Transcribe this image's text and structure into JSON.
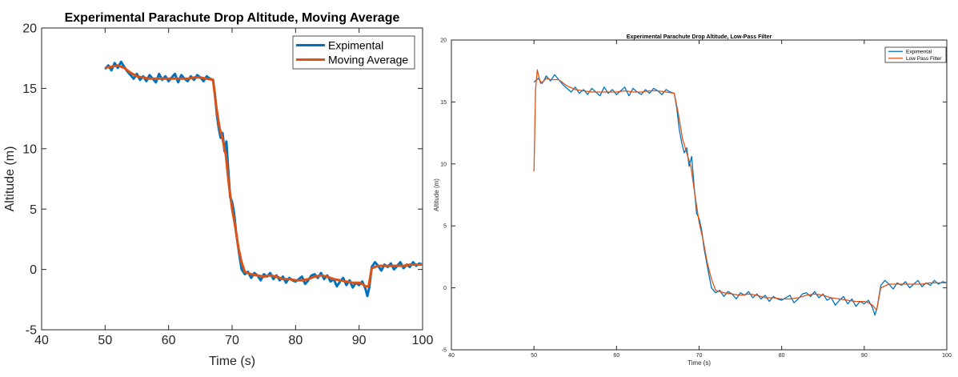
{
  "chart_data": [
    {
      "type": "line",
      "title": "Experimental Parachute Drop Altitude, Moving Average",
      "xlabel": "Time (s)",
      "ylabel": "Altitude (m)",
      "xlim": [
        40,
        100
      ],
      "ylim": [
        -5,
        20
      ],
      "xticks": [
        40,
        50,
        60,
        70,
        80,
        90,
        100
      ],
      "yticks": [
        -5,
        0,
        5,
        10,
        15,
        20
      ],
      "grid": false,
      "legend_position": "top-right",
      "series": [
        {
          "name": "Expimental",
          "color": "#0072BD",
          "x": [
            50,
            50.5,
            51,
            51.5,
            52,
            52.5,
            53,
            53.5,
            54,
            54.5,
            55,
            55.5,
            56,
            56.5,
            57,
            57.5,
            58,
            58.5,
            59,
            59.5,
            60,
            60.5,
            61,
            61.5,
            62,
            62.5,
            63,
            63.5,
            64,
            64.5,
            65,
            65.5,
            66,
            66.5,
            67,
            67.3,
            67.6,
            67.9,
            68.2,
            68.5,
            68.8,
            69.1,
            69.4,
            69.7,
            70,
            70.3,
            70.6,
            70.9,
            71.2,
            71.5,
            72,
            72.5,
            73,
            73.5,
            74,
            74.5,
            75,
            75.5,
            76,
            76.5,
            77,
            77.5,
            78,
            78.5,
            79,
            79.5,
            80,
            80.5,
            81,
            81.5,
            82,
            82.5,
            83,
            83.5,
            84,
            84.5,
            85,
            85.5,
            86,
            86.5,
            87,
            87.5,
            88,
            88.5,
            89,
            89.5,
            90,
            90.5,
            91,
            91.3,
            91.6,
            92,
            92.5,
            93,
            93.5,
            94,
            94.5,
            95,
            95.5,
            96,
            96.5,
            97,
            97.5,
            98,
            98.5,
            99,
            99.5,
            100
          ],
          "y": [
            16.6,
            16.9,
            16.5,
            17.1,
            16.7,
            17.2,
            16.8,
            16.4,
            16.1,
            15.8,
            16.2,
            15.7,
            16.0,
            15.6,
            16.1,
            15.8,
            15.5,
            16.2,
            15.7,
            16.0,
            15.6,
            15.9,
            16.2,
            15.5,
            16.1,
            15.8,
            15.6,
            16.0,
            15.7,
            16.1,
            15.9,
            15.6,
            16.0,
            15.8,
            15.7,
            14.5,
            12.8,
            11.7,
            10.9,
            11.3,
            9.8,
            10.6,
            8.2,
            6.0,
            5.6,
            4.7,
            3.2,
            2.1,
            1.0,
            0.0,
            -0.4,
            -0.2,
            -0.7,
            -0.3,
            -0.5,
            -0.9,
            -0.4,
            -0.6,
            -0.3,
            -0.8,
            -0.5,
            -0.9,
            -0.6,
            -1.1,
            -0.7,
            -0.9,
            -1.0,
            -0.8,
            -0.6,
            -1.2,
            -0.9,
            -0.5,
            -0.4,
            -0.7,
            -0.3,
            -0.8,
            -0.5,
            -1.0,
            -0.8,
            -1.4,
            -1.0,
            -0.7,
            -1.3,
            -0.9,
            -1.5,
            -1.1,
            -1.3,
            -1.0,
            -1.6,
            -2.2,
            -1.5,
            0.2,
            0.6,
            0.3,
            -0.1,
            0.4,
            0.2,
            0.5,
            0.0,
            0.3,
            0.6,
            0.1,
            0.4,
            0.2,
            0.6,
            0.3,
            0.5,
            0.4
          ]
        },
        {
          "name": "Moving Average",
          "color": "#D95319",
          "x": [
            50,
            51,
            52,
            53,
            54,
            55,
            56,
            57,
            58,
            59,
            60,
            61,
            62,
            63,
            64,
            65,
            66,
            67,
            67.5,
            68,
            68.5,
            69,
            69.5,
            70,
            70.5,
            71,
            71.5,
            72,
            73,
            74,
            75,
            76,
            77,
            78,
            79,
            80,
            81,
            82,
            83,
            84,
            85,
            86,
            87,
            88,
            89,
            90,
            90.5,
            91,
            91.5,
            92,
            93,
            94,
            95,
            96,
            97,
            98,
            99,
            100
          ],
          "y": [
            16.7,
            16.8,
            16.9,
            16.7,
            16.3,
            16.0,
            15.9,
            15.8,
            15.8,
            15.8,
            15.8,
            15.8,
            15.8,
            15.8,
            15.9,
            15.9,
            15.8,
            15.7,
            13.5,
            11.8,
            10.8,
            9.5,
            7.0,
            5.0,
            3.5,
            1.8,
            0.6,
            -0.2,
            -0.4,
            -0.5,
            -0.6,
            -0.5,
            -0.6,
            -0.8,
            -0.8,
            -0.9,
            -0.9,
            -0.8,
            -0.6,
            -0.5,
            -0.6,
            -0.8,
            -0.9,
            -1.0,
            -1.1,
            -1.1,
            -1.2,
            -1.4,
            -1.4,
            0.1,
            0.3,
            0.3,
            0.3,
            0.3,
            0.3,
            0.4,
            0.4,
            0.4
          ]
        }
      ]
    },
    {
      "type": "line",
      "title": "Experimental Parachute Drop Altitude, Low-Pass Filter",
      "xlabel": "Time (s)",
      "ylabel": "Altitude (m)",
      "xlim": [
        40,
        100
      ],
      "ylim": [
        -5,
        20
      ],
      "xticks": [
        40,
        50,
        60,
        70,
        80,
        90,
        100
      ],
      "yticks": [
        -5,
        0,
        5,
        10,
        15,
        20
      ],
      "grid": false,
      "legend_position": "top-right",
      "series": [
        {
          "name": "Expimental",
          "color": "#0072BD",
          "x": [
            50,
            50.5,
            51,
            51.5,
            52,
            52.5,
            53,
            53.5,
            54,
            54.5,
            55,
            55.5,
            56,
            56.5,
            57,
            57.5,
            58,
            58.5,
            59,
            59.5,
            60,
            60.5,
            61,
            61.5,
            62,
            62.5,
            63,
            63.5,
            64,
            64.5,
            65,
            65.5,
            66,
            66.5,
            67,
            67.3,
            67.6,
            67.9,
            68.2,
            68.5,
            68.8,
            69.1,
            69.4,
            69.7,
            70,
            70.3,
            70.6,
            70.9,
            71.2,
            71.5,
            72,
            72.5,
            73,
            73.5,
            74,
            74.5,
            75,
            75.5,
            76,
            76.5,
            77,
            77.5,
            78,
            78.5,
            79,
            79.5,
            80,
            80.5,
            81,
            81.5,
            82,
            82.5,
            83,
            83.5,
            84,
            84.5,
            85,
            85.5,
            86,
            86.5,
            87,
            87.5,
            88,
            88.5,
            89,
            89.5,
            90,
            90.5,
            91,
            91.3,
            91.6,
            92,
            92.5,
            93,
            93.5,
            94,
            94.5,
            95,
            95.5,
            96,
            96.5,
            97,
            97.5,
            98,
            98.5,
            99,
            99.5,
            100
          ],
          "y": [
            16.6,
            16.9,
            16.5,
            17.1,
            16.7,
            17.2,
            16.8,
            16.4,
            16.1,
            15.8,
            16.2,
            15.7,
            16.0,
            15.6,
            16.1,
            15.8,
            15.5,
            16.2,
            15.7,
            16.0,
            15.6,
            15.9,
            16.2,
            15.5,
            16.1,
            15.8,
            15.6,
            16.0,
            15.7,
            16.1,
            15.9,
            15.6,
            16.0,
            15.8,
            15.7,
            14.5,
            12.8,
            11.7,
            10.9,
            11.3,
            9.8,
            10.6,
            8.2,
            6.0,
            5.6,
            4.7,
            3.2,
            2.1,
            1.0,
            0.0,
            -0.4,
            -0.2,
            -0.7,
            -0.3,
            -0.5,
            -0.9,
            -0.4,
            -0.6,
            -0.3,
            -0.8,
            -0.5,
            -0.9,
            -0.6,
            -1.1,
            -0.7,
            -0.9,
            -1.0,
            -0.8,
            -0.6,
            -1.2,
            -0.9,
            -0.5,
            -0.4,
            -0.7,
            -0.3,
            -0.8,
            -0.5,
            -1.0,
            -0.8,
            -1.4,
            -1.0,
            -0.7,
            -1.3,
            -0.9,
            -1.5,
            -1.1,
            -1.3,
            -1.0,
            -1.6,
            -2.2,
            -1.5,
            0.2,
            0.6,
            0.3,
            -0.1,
            0.4,
            0.2,
            0.5,
            0.0,
            0.3,
            0.6,
            0.1,
            0.4,
            0.2,
            0.6,
            0.3,
            0.5,
            0.4
          ]
        },
        {
          "name": "Low Pass Filter",
          "color": "#D95319",
          "x": [
            50,
            50.2,
            50.4,
            50.6,
            50.8,
            51,
            51.5,
            52,
            53,
            54,
            55,
            56,
            57,
            58,
            59,
            60,
            61,
            62,
            63,
            64,
            65,
            66,
            67,
            67.5,
            68,
            68.5,
            69,
            69.5,
            70,
            70.5,
            71,
            71.5,
            72,
            73,
            74,
            75,
            76,
            77,
            78,
            79,
            80,
            81,
            82,
            83,
            84,
            85,
            86,
            87,
            88,
            89,
            90,
            90.5,
            91,
            91.5,
            92,
            93,
            94,
            95,
            96,
            97,
            98,
            99,
            100
          ],
          "y": [
            9.4,
            16.0,
            17.6,
            17.0,
            16.5,
            16.6,
            16.9,
            16.8,
            16.8,
            16.3,
            16.0,
            15.9,
            15.8,
            15.8,
            15.8,
            15.8,
            15.9,
            15.8,
            15.8,
            15.9,
            15.9,
            15.8,
            15.7,
            14.0,
            12.0,
            10.9,
            9.8,
            7.5,
            5.3,
            3.8,
            2.0,
            0.7,
            -0.2,
            -0.4,
            -0.5,
            -0.6,
            -0.5,
            -0.6,
            -0.8,
            -0.8,
            -0.9,
            -0.9,
            -0.8,
            -0.6,
            -0.5,
            -0.6,
            -0.8,
            -0.9,
            -1.0,
            -1.1,
            -1.1,
            -1.2,
            -1.4,
            -1.8,
            0.0,
            0.3,
            0.3,
            0.3,
            0.3,
            0.3,
            0.4,
            0.4,
            0.4
          ]
        }
      ]
    }
  ]
}
